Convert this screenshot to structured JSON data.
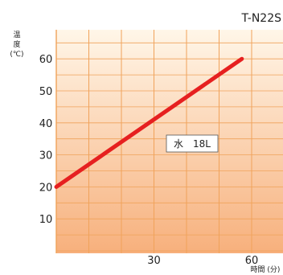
{
  "chart_data": {
    "type": "line",
    "title": "T-N22S",
    "ylabel": "温\n度\n(℃)",
    "xlabel": "時間 (分)",
    "xlim": [
      0,
      70
    ],
    "ylim": [
      0,
      70
    ],
    "x_ticks": [
      30,
      60
    ],
    "y_ticks": [
      10,
      20,
      30,
      40,
      50,
      60
    ],
    "grid": true,
    "series": [
      {
        "name": "水　18L",
        "x": [
          0,
          57
        ],
        "y": [
          20,
          60
        ],
        "color": "#e62020"
      }
    ],
    "colors": {
      "background_top": "#fff6e8",
      "background_bottom": "#f7b07c",
      "grid": "#f0a25a"
    }
  }
}
